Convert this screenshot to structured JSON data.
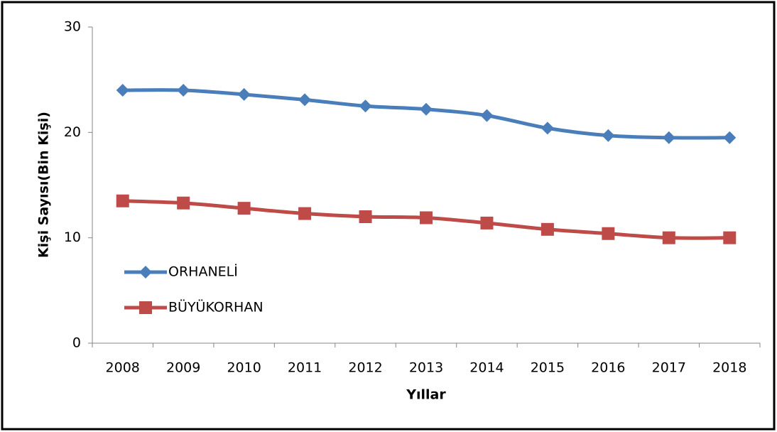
{
  "chart_data": {
    "type": "line",
    "x_label": "Yıllar",
    "y_label": "Kişi Sayısı(Bin Kişi)",
    "categories": [
      "2008",
      "2009",
      "2010",
      "2011",
      "2012",
      "2013",
      "2014",
      "2015",
      "2016",
      "2017",
      "2018"
    ],
    "series": [
      {
        "name": "ORHANELİ",
        "color": "#4a7ebb",
        "marker": "diamond",
        "values": [
          24.0,
          24.0,
          23.6,
          23.1,
          22.5,
          22.2,
          21.6,
          20.4,
          19.7,
          19.5,
          19.5
        ]
      },
      {
        "name": "BÜYÜKORHAN",
        "color": "#be4b48",
        "marker": "square",
        "values": [
          13.5,
          13.3,
          12.8,
          12.3,
          12.0,
          11.9,
          11.4,
          10.8,
          10.4,
          10.0,
          10.0
        ]
      }
    ],
    "ylim": [
      0,
      30
    ],
    "yticks": [
      0,
      10,
      20,
      30
    ],
    "smooth": true,
    "grid": false,
    "legend": "left"
  }
}
